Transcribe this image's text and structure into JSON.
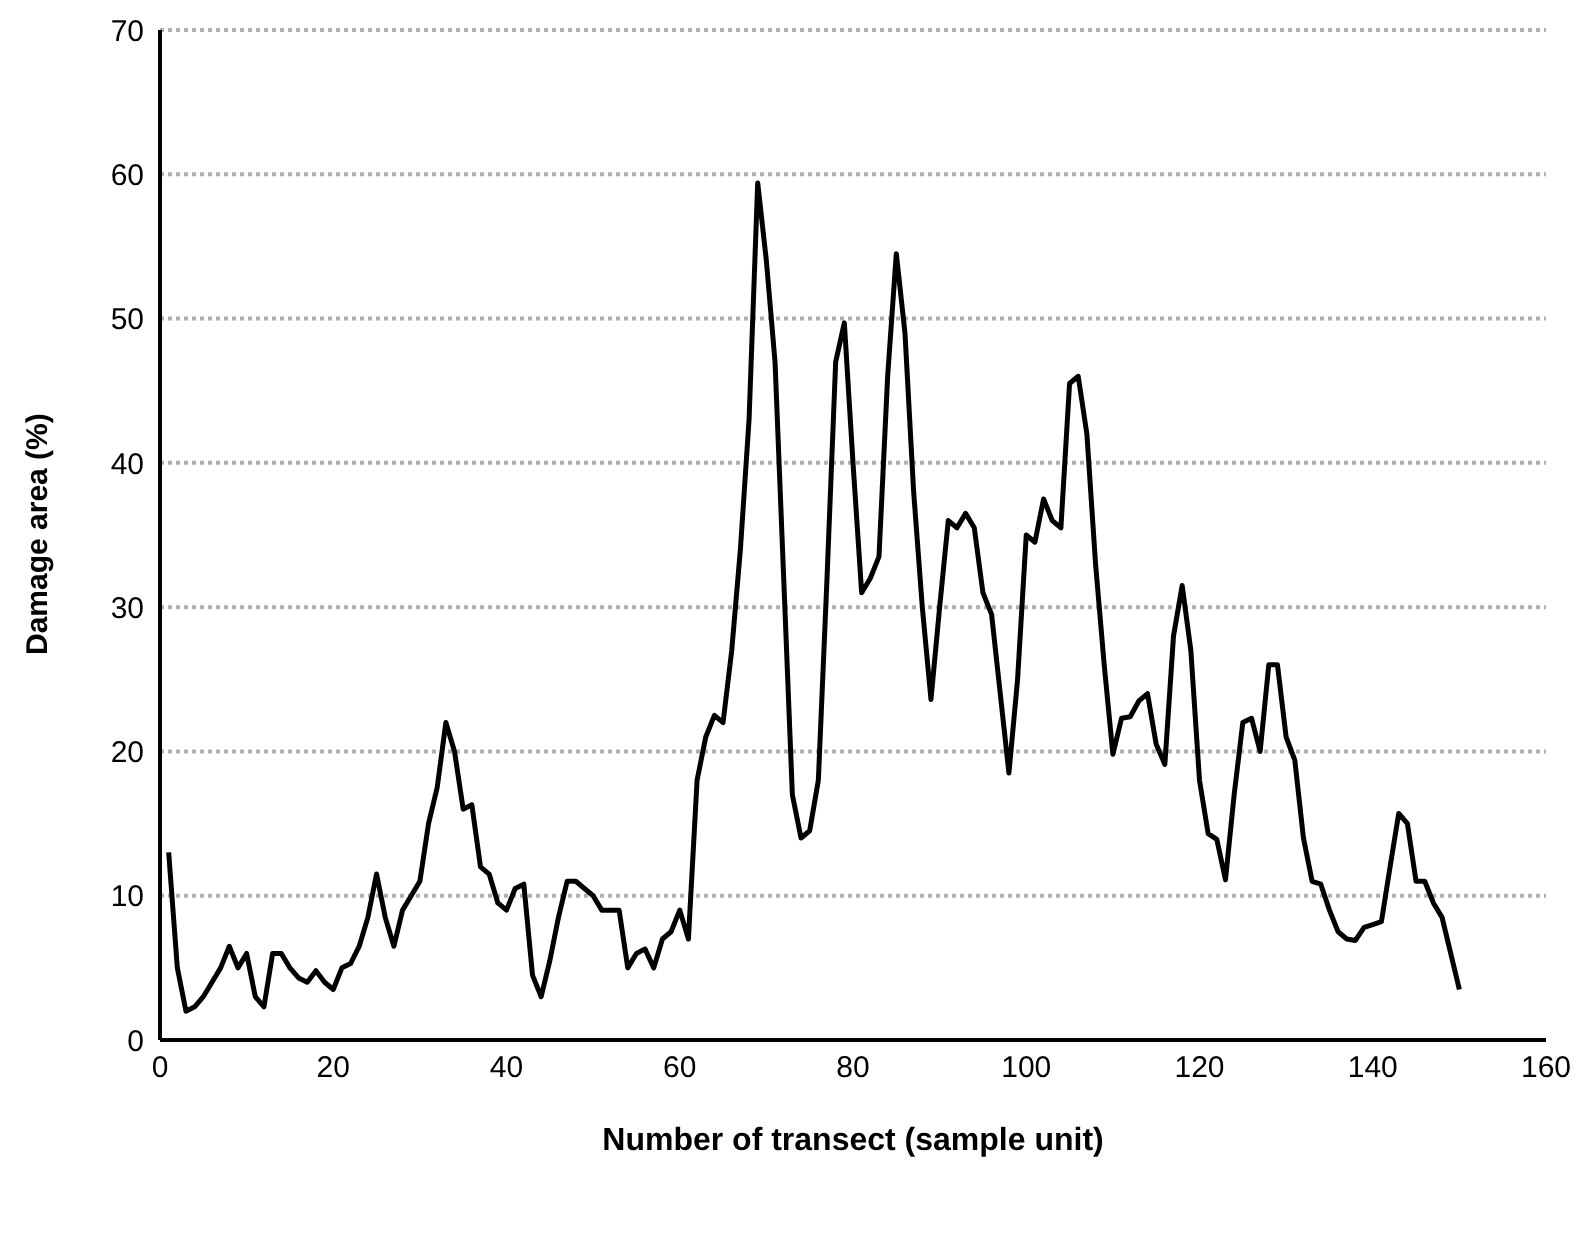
{
  "chart_data": {
    "type": "line",
    "xlabel": "Number of transect (sample unit)",
    "ylabel": "Damage area (%)",
    "x": [
      1,
      2,
      3,
      4,
      5,
      6,
      7,
      8,
      9,
      10,
      11,
      12,
      13,
      14,
      15,
      16,
      17,
      18,
      19,
      20,
      21,
      22,
      23,
      24,
      25,
      26,
      27,
      28,
      29,
      30,
      31,
      32,
      33,
      34,
      35,
      36,
      37,
      38,
      39,
      40,
      41,
      42,
      43,
      44,
      45,
      46,
      47,
      48,
      49,
      50,
      51,
      52,
      53,
      54,
      55,
      56,
      57,
      58,
      59,
      60,
      61,
      62,
      63,
      64,
      65,
      66,
      67,
      68,
      69,
      70,
      71,
      72,
      73,
      74,
      75,
      76,
      77,
      78,
      79,
      80,
      81,
      82,
      83,
      84,
      85,
      86,
      87,
      88,
      89,
      90,
      91,
      92,
      93,
      94,
      95,
      96,
      97,
      98,
      99,
      100,
      101,
      102,
      103,
      104,
      105,
      106,
      107,
      108,
      109,
      110,
      111,
      112,
      113,
      114,
      115,
      116,
      117,
      118,
      119,
      120,
      121,
      122,
      123,
      124,
      125,
      126,
      127,
      128,
      129,
      130,
      131,
      132,
      133,
      134,
      135,
      136,
      137,
      138,
      139,
      140,
      141,
      142,
      143,
      144,
      145,
      146,
      147,
      148,
      149,
      150
    ],
    "series": [
      {
        "color": "#000000",
        "values": [
          13,
          5,
          2,
          2.3,
          3,
          4,
          5,
          6.5,
          5,
          6,
          3,
          2.3,
          6,
          6,
          5,
          4.3,
          4,
          4.8,
          4,
          3.5,
          5,
          5.3,
          6.5,
          8.5,
          11.5,
          8.5,
          6.5,
          9,
          10,
          11,
          15,
          17.5,
          22,
          20,
          16,
          16.3,
          12,
          11.5,
          9.5,
          9,
          10.5,
          10.8,
          4.5,
          3,
          5.5,
          8.5,
          11,
          11,
          10.5,
          10,
          9,
          9,
          9,
          5,
          6,
          6.3,
          5,
          7,
          7.5,
          9,
          7,
          18,
          21,
          22.5,
          22,
          27,
          34,
          43,
          59.4,
          54,
          47,
          32,
          17,
          14,
          14.5,
          18,
          32,
          47,
          49.7,
          40,
          31,
          32,
          33.5,
          46,
          54.5,
          49,
          38,
          30,
          23.6,
          30,
          36,
          35.5,
          36.5,
          35.5,
          31,
          29.5,
          24,
          18.5,
          25,
          35,
          34.5,
          37.5,
          36,
          35.5,
          45.5,
          46,
          42,
          33,
          26,
          19.8,
          22.3,
          22.4,
          23.5,
          24,
          20.5,
          19.1,
          28,
          31.5,
          27,
          18,
          14.3,
          13.9,
          11.1,
          17,
          22,
          22.3,
          20,
          26,
          26,
          21,
          19.4,
          14,
          11,
          10.8,
          9,
          7.5,
          7,
          6.9,
          7.8,
          8,
          8.2,
          12,
          15.7,
          15,
          11,
          11,
          9.5,
          8.5,
          6,
          3.5
        ]
      }
    ],
    "xlim": [
      0,
      160
    ],
    "xticks": [
      0,
      20,
      40,
      60,
      80,
      100,
      120,
      140,
      160
    ],
    "ylim": [
      0,
      70
    ],
    "yticks": [
      0,
      10,
      20,
      30,
      40,
      50,
      60,
      70
    ],
    "grid": "y",
    "marker": "none",
    "line_style": "solid"
  }
}
